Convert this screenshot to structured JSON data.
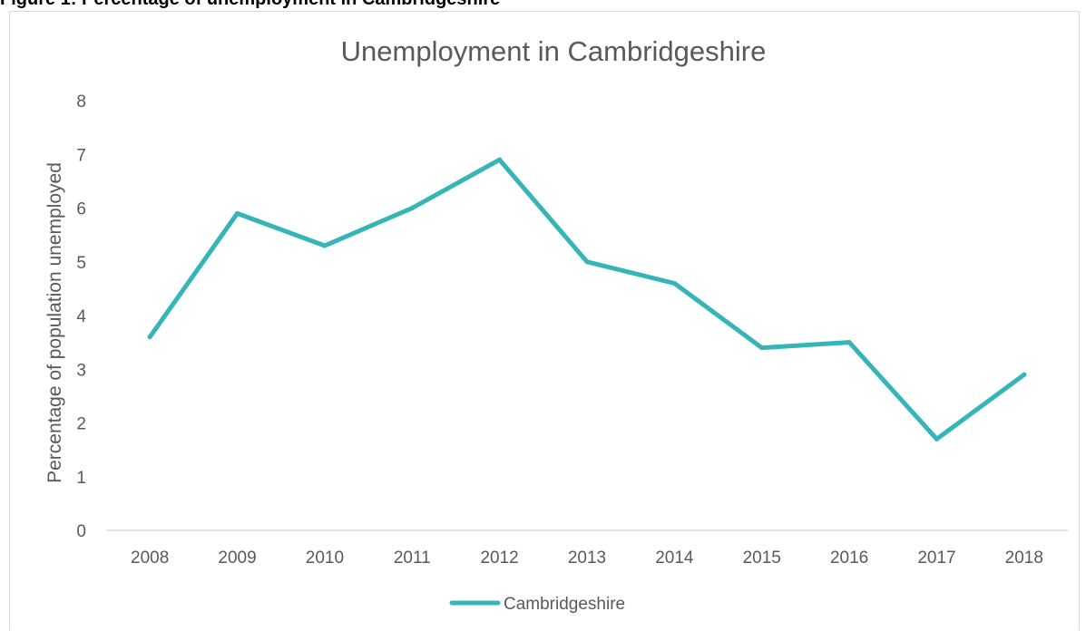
{
  "figure_heading": "Figure 1: Percentage of unemployment in Cambridgeshire",
  "colors": {
    "series": "#36b5b9",
    "axis_text": "#595959",
    "axis_line": "#d9d9d9",
    "frame": "#d9d9d9"
  },
  "chart_data": {
    "type": "line",
    "title": "Unemployment in Cambridgeshire",
    "xlabel": "",
    "ylabel": "Percentage of population unemployed",
    "categories": [
      "2008",
      "2009",
      "2010",
      "2011",
      "2012",
      "2013",
      "2014",
      "2015",
      "2016",
      "2017",
      "2018"
    ],
    "series": [
      {
        "name": "Cambridgeshire",
        "values": [
          3.6,
          5.9,
          5.3,
          6.0,
          6.9,
          5.0,
          4.6,
          3.4,
          3.5,
          1.7,
          2.9
        ]
      }
    ],
    "ylim": [
      0,
      8
    ],
    "yticks": [
      "0",
      "1",
      "2",
      "3",
      "4",
      "5",
      "6",
      "7",
      "8"
    ],
    "grid": false,
    "legend_position": "bottom"
  }
}
